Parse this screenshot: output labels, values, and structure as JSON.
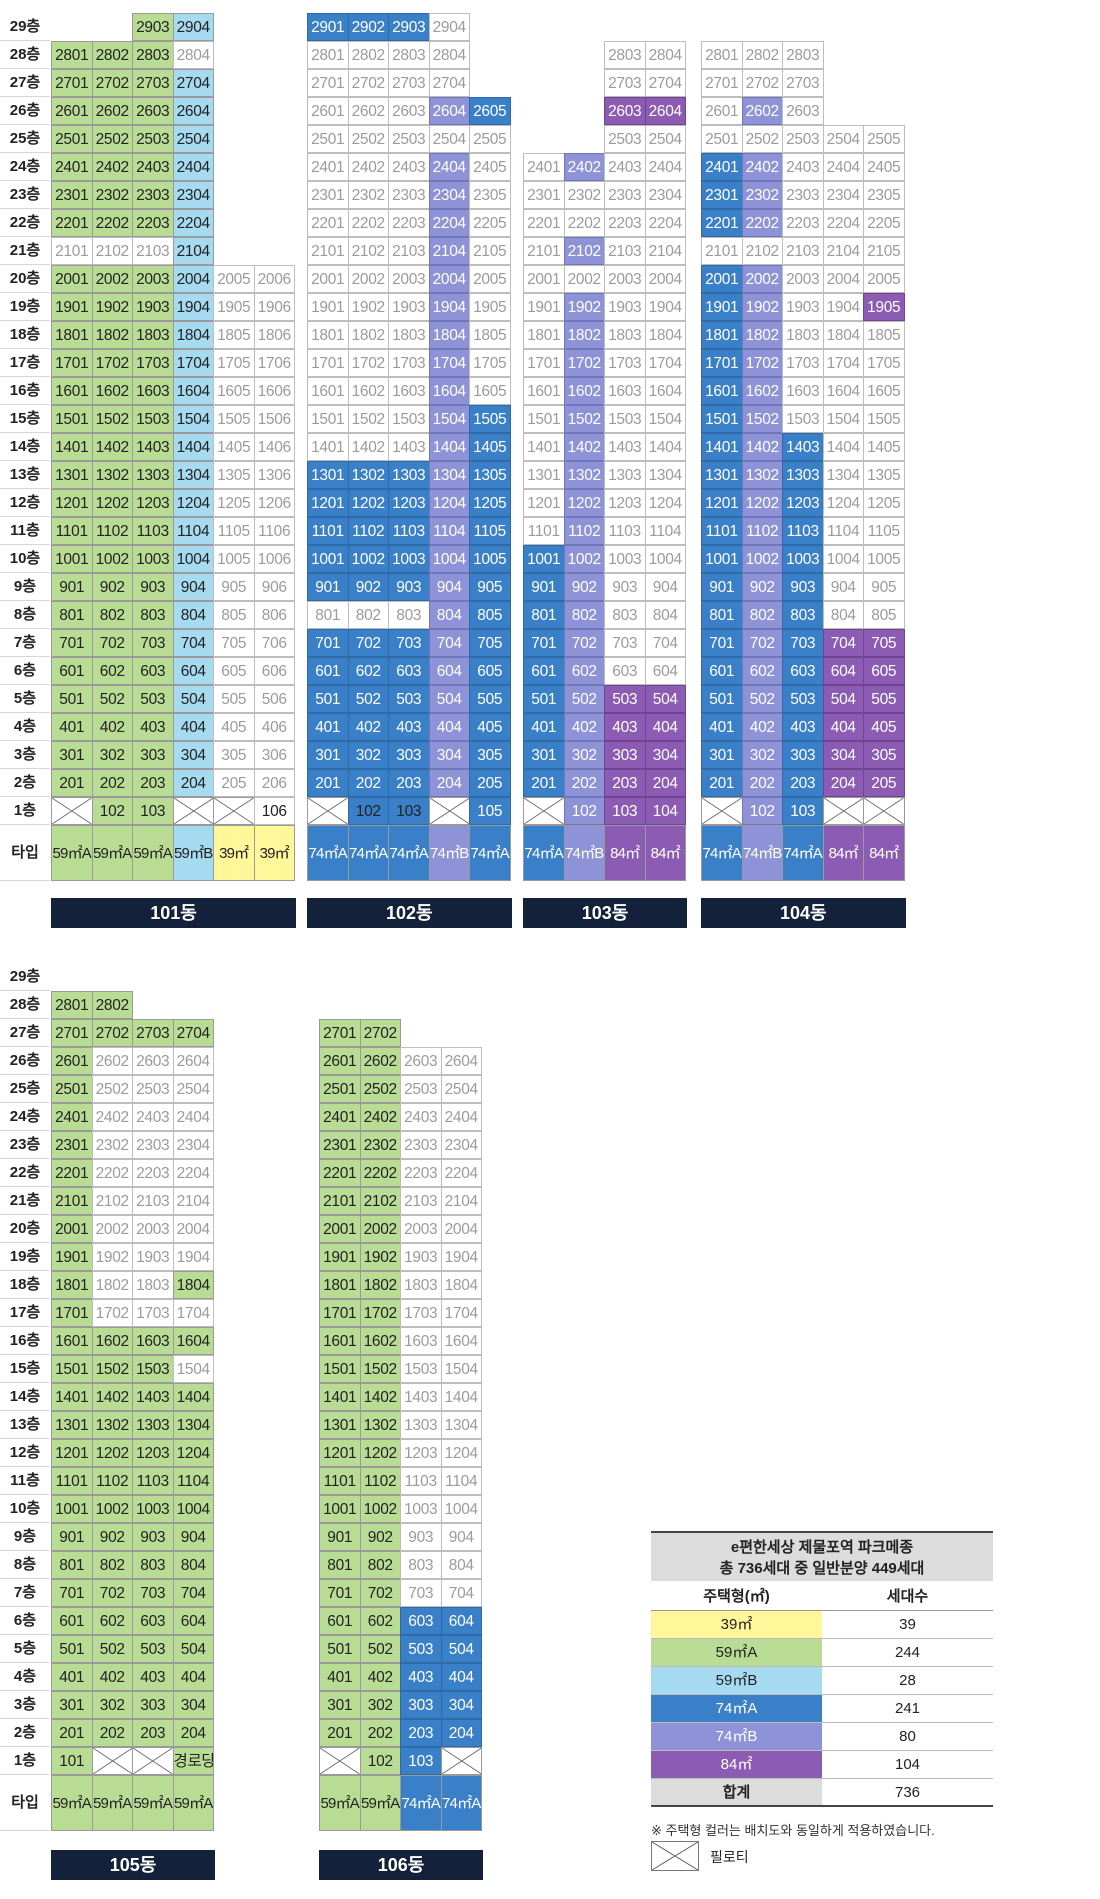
{
  "colors": {
    "39": "#fff79a",
    "59A": "#b9dc94",
    "59B": "#a6daf1",
    "74A": "#3a80c8",
    "74B": "#8d93d6",
    "84": "#8c5bb4",
    "plain": "#ffffff",
    "bar": "#13223a"
  },
  "floor_labels": [
    "29층",
    "28층",
    "27층",
    "26층",
    "25층",
    "24층",
    "23층",
    "22층",
    "21층",
    "20층",
    "19층",
    "18층",
    "17층",
    "16층",
    "15층",
    "14층",
    "13층",
    "12층",
    "11층",
    "10층",
    "9층",
    "8층",
    "7층",
    "6층",
    "5층",
    "4층",
    "3층",
    "2층",
    "1층"
  ],
  "type_label": "타입",
  "buildings_top": [
    {
      "name": "101동",
      "columns": [
        {
          "unit": "01",
          "type": "59㎡A",
          "key": "59A",
          "top": 28,
          "colored_from": 1,
          "colored_to": 28,
          "skip": [
            21
          ],
          "first_floor": "pil"
        },
        {
          "unit": "02",
          "type": "59㎡A",
          "key": "59A",
          "top": 28,
          "colored_from": 2,
          "colored_to": 28,
          "skip": [
            21
          ],
          "first_floor": "102"
        },
        {
          "unit": "03",
          "type": "59㎡A",
          "key": "59A",
          "top": 29,
          "colored_from": 2,
          "colored_to": 29,
          "skip": [
            21
          ],
          "first_floor": "103"
        },
        {
          "unit": "04",
          "type": "59㎡B",
          "key": "59B",
          "top": 29,
          "colored_from": 2,
          "colored_to": 29,
          "skip": [
            28
          ],
          "first_floor": "pil"
        },
        {
          "unit": "05",
          "type": "39㎡",
          "key": "39",
          "top": 20,
          "colored_from": 99,
          "colored_to": 0,
          "skip": [],
          "first_floor": "pil"
        },
        {
          "unit": "06",
          "type": "39㎡",
          "key": "39",
          "top": 20,
          "colored_from": 99,
          "colored_to": 0,
          "skip": [],
          "first_floor": "106"
        }
      ]
    },
    {
      "name": "102동",
      "columns": [
        {
          "unit": "01",
          "type": "74㎡A",
          "key": "74A",
          "top": 29,
          "colored_from": 2,
          "colored_to": 13,
          "extra": [
            29
          ],
          "first_floor": "pil",
          "plain_on": [
            8
          ]
        },
        {
          "unit": "02",
          "type": "74㎡A",
          "key": "74A",
          "top": 29,
          "colored_from": 2,
          "colored_to": 13,
          "extra": [
            29
          ],
          "first_floor": "102",
          "plain_on": [
            8
          ]
        },
        {
          "unit": "03",
          "type": "74㎡A",
          "key": "74A",
          "top": 29,
          "colored_from": 2,
          "colored_to": 13,
          "extra": [
            29
          ],
          "first_floor": "103",
          "plain_on": [
            8
          ]
        },
        {
          "unit": "04",
          "type": "74㎡B",
          "key": "74B",
          "top": 29,
          "colored_from": 2,
          "colored_to": 26,
          "extra": [],
          "first_floor": "pil",
          "skip": [
            25,
            29
          ]
        },
        {
          "unit": "05",
          "type": "74㎡A",
          "key": "74A",
          "top": 26,
          "colored_from": 1,
          "colored_to": 15,
          "extra": [
            26
          ],
          "first_floor": "105"
        }
      ]
    },
    {
      "name": "103동",
      "columns": [
        {
          "unit": "01",
          "type": "74㎡A",
          "key": "74A",
          "top": 24,
          "colored_from": 1,
          "colored_to": 10,
          "first_floor": "pil"
        },
        {
          "unit": "02",
          "type": "74㎡B",
          "key": "74B",
          "top": 24,
          "colored_from": 1,
          "colored_to": 24,
          "skip": [
            23,
            22,
            20
          ],
          "first_floor": "102"
        },
        {
          "unit": "03",
          "type": "84㎡",
          "key": "84",
          "top": 28,
          "colored_from": 1,
          "colored_to": 5,
          "extra": [
            26
          ],
          "first_floor": "103"
        },
        {
          "unit": "04",
          "type": "84㎡",
          "key": "84",
          "top": 28,
          "colored_from": 1,
          "colored_to": 5,
          "extra": [
            26
          ],
          "first_floor": "104"
        }
      ]
    },
    {
      "name": "104동",
      "columns": [
        {
          "unit": "01",
          "type": "74㎡A",
          "key": "74A",
          "top": 28,
          "colored_from": 2,
          "colored_to": 24,
          "skip": [
            21
          ],
          "first_floor": "pil"
        },
        {
          "unit": "02",
          "type": "74㎡B",
          "key": "74B",
          "top": 28,
          "colored_from": 1,
          "colored_to": 26,
          "skip": [
            25,
            21
          ],
          "first_floor": "102"
        },
        {
          "unit": "03",
          "type": "74㎡A",
          "key": "74A",
          "top": 28,
          "colored_from": 1,
          "colored_to": 14,
          "skip": [],
          "first_floor": "103"
        },
        {
          "unit": "04",
          "type": "84㎡",
          "key": "84",
          "top": 25,
          "colored_from": 2,
          "colored_to": 7,
          "skip": [],
          "first_floor": "pil"
        },
        {
          "unit": "05",
          "type": "84㎡",
          "key": "84",
          "top": 25,
          "colored_from": 2,
          "colored_to": 7,
          "skip": [],
          "extra": [
            19
          ],
          "first_floor": "pil"
        }
      ]
    }
  ],
  "buildings_bottom": [
    {
      "name": "105동",
      "columns": [
        {
          "unit": "01",
          "type": "59㎡A",
          "key": "59A",
          "top": 28,
          "colored_from": 1,
          "colored_to": 28,
          "first_floor": "101"
        },
        {
          "unit": "02",
          "type": "59㎡A",
          "key": "59A",
          "top": 28,
          "colored_from": 2,
          "colored_to": 16,
          "extra": [
            27,
            28
          ],
          "skip": [],
          "first_floor": "pil",
          "plain_on": [
            17,
            18,
            19,
            20,
            21,
            22,
            23,
            24,
            25,
            26
          ]
        },
        {
          "unit": "03",
          "type": "59㎡A",
          "key": "59A",
          "top": 27,
          "colored_from": 2,
          "colored_to": 16,
          "extra": [
            27
          ],
          "first_floor": "pil"
        },
        {
          "unit": "04",
          "type": "59㎡A",
          "key": "59A",
          "top": 27,
          "colored_from": 2,
          "colored_to": 18,
          "extra": [
            27
          ],
          "skip": [],
          "plain_on": [
            15
          ],
          "first_floor": "경로당"
        }
      ]
    },
    {
      "name": "106동",
      "columns": [
        {
          "unit": "01",
          "type": "59㎡A",
          "key": "59A",
          "top": 27,
          "colored_from": 2,
          "colored_to": 27,
          "first_floor": "pil"
        },
        {
          "unit": "02",
          "type": "59㎡A",
          "key": "59A",
          "top": 27,
          "colored_from": 1,
          "colored_to": 27,
          "plain_on": [],
          "first_floor": "102"
        },
        {
          "unit": "03",
          "type": "74㎡A",
          "key": "74A",
          "top": 26,
          "colored_from": 1,
          "colored_to": 6,
          "first_floor": "103"
        },
        {
          "unit": "04",
          "type": "74㎡A",
          "key": "74A",
          "top": 26,
          "colored_from": 2,
          "colored_to": 6,
          "first_floor": "pil"
        }
      ]
    }
  ],
  "legend": {
    "title_line1": "e편한세상 제물포역 파크메종",
    "title_line2": "총 736세대 중 일반분양 449세대",
    "col1": "주택형(㎡)",
    "col2": "세대수",
    "rows": [
      {
        "type": "39㎡",
        "count": "39",
        "key": "39"
      },
      {
        "type": "59㎡A",
        "count": "244",
        "key": "59A"
      },
      {
        "type": "59㎡B",
        "count": "28",
        "key": "59B"
      },
      {
        "type": "74㎡A",
        "count": "241",
        "key": "74A"
      },
      {
        "type": "74㎡B",
        "count": "80",
        "key": "74B"
      },
      {
        "type": "84㎡",
        "count": "104",
        "key": "84"
      }
    ],
    "total_label": "합계",
    "total_count": "736",
    "note": "※ 주택형 컬러는 배치도와 동일하게 적용하였습니다.",
    "piloti_label": "필로티"
  }
}
